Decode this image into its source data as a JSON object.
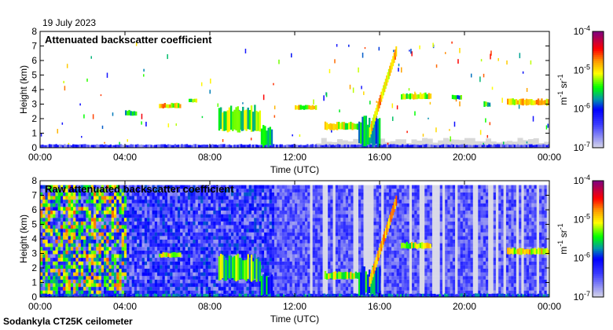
{
  "date_label": "19 July 2023",
  "footer_label": "Sodankyla CT25K ceilometer",
  "chart_data": [
    {
      "type": "heatmap",
      "title": "Attenuated backscatter coefficient",
      "xlabel": "Time (UTC)",
      "ylabel": "Height (km)",
      "xlim": [
        0,
        24
      ],
      "ylim": [
        0,
        8
      ],
      "x_ticks": [
        "00:00",
        "04:00",
        "08:00",
        "12:00",
        "16:00",
        "20:00",
        "00:00"
      ],
      "y_ticks": [
        "0",
        "1",
        "2",
        "3",
        "4",
        "5",
        "6",
        "7",
        "8"
      ],
      "colorbar": {
        "label_unit": "m",
        "label_unit2": "sr",
        "exp": "-1",
        "ticks": [
          "-4",
          "-5",
          "-6",
          "-7"
        ],
        "base": "10",
        "range_log10": [
          -7,
          -4
        ]
      },
      "noise": false,
      "features": [
        {
          "t": [
            0,
            24
          ],
          "h": [
            0,
            0.25
          ],
          "v": -6.4
        },
        {
          "t": [
            4.0,
            4.5
          ],
          "h": [
            2.2,
            2.6
          ],
          "v": -5.6
        },
        {
          "t": [
            5.6,
            6.6
          ],
          "h": [
            2.7,
            3.1
          ],
          "v": -5.0
        },
        {
          "t": [
            7.0,
            7.4
          ],
          "h": [
            3.1,
            3.4
          ],
          "v": -5.3
        },
        {
          "t": [
            8.4,
            10.4
          ],
          "h": [
            1.0,
            3.0
          ],
          "v": -5.4
        },
        {
          "t": [
            10.4,
            10.9
          ],
          "h": [
            0,
            1.6
          ],
          "v": -5.8
        },
        {
          "t": [
            12.0,
            13.0
          ],
          "h": [
            2.6,
            3.0
          ],
          "v": -5.1
        },
        {
          "t": [
            13.4,
            15.0
          ],
          "h": [
            1.2,
            1.8
          ],
          "v": -5.2
        },
        {
          "t": [
            15.0,
            16.0
          ],
          "h": [
            0,
            2.2
          ],
          "v": -5.7
        },
        {
          "t": [
            17.0,
            18.4
          ],
          "h": [
            3.3,
            3.8
          ],
          "v": -5.2
        },
        {
          "t": [
            19.4,
            19.8
          ],
          "h": [
            3.3,
            3.7
          ],
          "v": -5.6
        },
        {
          "t": [
            20.9,
            21.2
          ],
          "h": [
            2.8,
            3.2
          ],
          "v": -5.4
        },
        {
          "t": [
            22.0,
            24.0
          ],
          "h": [
            2.9,
            3.4
          ],
          "v": -5.0
        }
      ],
      "slant_layer": {
        "t": [
          15.5,
          16.8
        ],
        "h": [
          1.0,
          6.8
        ],
        "v": -4.9
      }
    },
    {
      "type": "heatmap",
      "title": "Raw attenuated backscatter coefficient",
      "xlabel": "Time (UTC)",
      "ylabel": "Height (km)",
      "xlim": [
        0,
        24
      ],
      "ylim": [
        0,
        8
      ],
      "x_ticks": [
        "00:00",
        "04:00",
        "08:00",
        "12:00",
        "16:00",
        "20:00",
        "00:00"
      ],
      "y_ticks": [
        "0",
        "1",
        "2",
        "3",
        "4",
        "5",
        "6",
        "7",
        "8"
      ],
      "colorbar": {
        "label_unit": "m",
        "label_unit2": "sr",
        "exp": "-1",
        "ticks": [
          "-4",
          "-5",
          "-6",
          "-7"
        ],
        "base": "10",
        "range_log10": [
          -7,
          -4
        ]
      },
      "noise": true,
      "features": [
        {
          "t": [
            0,
            24
          ],
          "h": [
            0,
            0.25
          ],
          "v": -6.0
        },
        {
          "t": [
            5.6,
            6.6
          ],
          "h": [
            2.7,
            3.1
          ],
          "v": -5.0
        },
        {
          "t": [
            8.4,
            10.4
          ],
          "h": [
            1.0,
            3.0
          ],
          "v": -5.4
        },
        {
          "t": [
            10.4,
            10.9
          ],
          "h": [
            0,
            1.6
          ],
          "v": -5.8
        },
        {
          "t": [
            13.4,
            15.0
          ],
          "h": [
            1.2,
            1.8
          ],
          "v": -5.2
        },
        {
          "t": [
            15.0,
            16.0
          ],
          "h": [
            0,
            2.2
          ],
          "v": -5.7
        },
        {
          "t": [
            17.0,
            18.4
          ],
          "h": [
            3.3,
            3.8
          ],
          "v": -5.2
        },
        {
          "t": [
            22.0,
            24.0
          ],
          "h": [
            2.9,
            3.4
          ],
          "v": -5.0
        }
      ],
      "slant_layer": {
        "t": [
          15.5,
          16.8
        ],
        "h": [
          1.0,
          6.8
        ],
        "v": -4.9
      }
    }
  ]
}
